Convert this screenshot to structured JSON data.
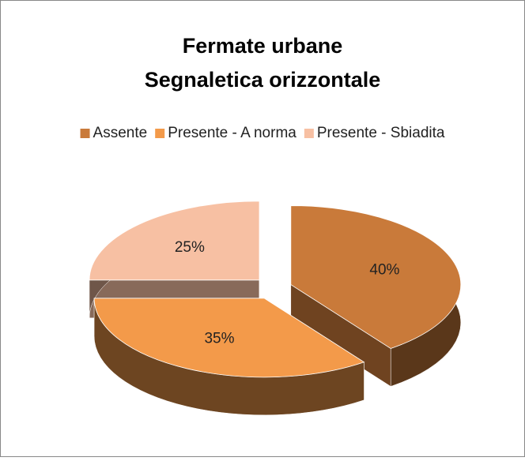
{
  "chart_data": {
    "type": "pie",
    "title": [
      "Fermate urbane",
      "Segnaletica orizzontale"
    ],
    "categories": [
      "Assente",
      "Presente - A norma",
      "Presente - Sbiadita"
    ],
    "values": [
      40,
      35,
      25
    ],
    "value_labels": [
      "40%",
      "35%",
      "25%"
    ],
    "colors": [
      "#c97a3a",
      "#f39a4a",
      "#f7c0a3"
    ],
    "legend": "top"
  }
}
